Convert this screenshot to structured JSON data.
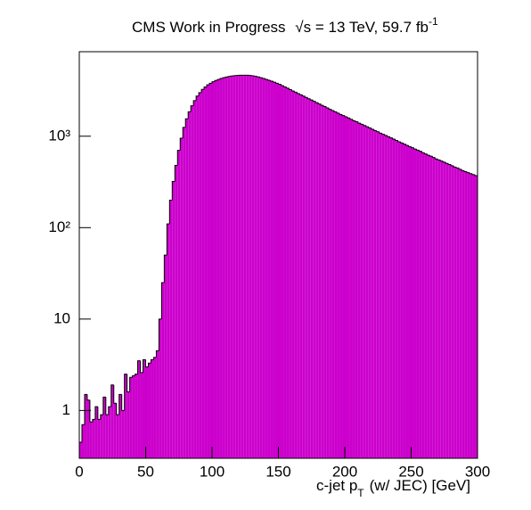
{
  "chart_data": {
    "type": "histogram",
    "title": "CMS Work in Progress",
    "title_energy": "√s = 13 TeV, 59.7 fb",
    "title_superscript": "-1",
    "xlabel": "c-jet p",
    "xlabel_subscript": "T",
    "xlabel_suffix": "(w/ JEC) [GeV]",
    "color": "#cc00cc",
    "log_y": true,
    "bins": [
      0,
      2,
      4,
      6,
      8,
      10,
      12,
      14,
      16,
      18,
      20,
      22,
      24,
      26,
      28,
      30,
      32,
      34,
      36,
      38,
      40,
      42,
      44,
      46,
      48,
      50,
      52,
      54,
      56,
      58,
      60,
      62,
      64,
      66,
      68,
      70,
      72,
      74,
      76,
      78,
      80,
      82,
      84,
      86,
      88,
      90,
      92,
      94,
      96,
      98,
      100,
      102,
      104,
      106,
      108,
      110,
      112,
      114,
      116,
      118,
      120,
      122,
      124,
      126,
      128,
      130,
      132,
      134,
      136,
      138,
      140,
      142,
      144,
      146,
      148,
      150,
      152,
      154,
      156,
      158,
      160,
      162,
      164,
      166,
      168,
      170,
      172,
      174,
      176,
      178,
      180,
      182,
      184,
      186,
      188,
      190,
      192,
      194,
      196,
      198,
      200,
      202,
      204,
      206,
      208,
      210,
      212,
      214,
      216,
      218,
      220,
      222,
      224,
      226,
      228,
      230,
      232,
      234,
      236,
      238,
      240,
      242,
      244,
      246,
      248,
      250,
      252,
      254,
      256,
      258,
      260,
      262,
      264,
      266,
      268,
      270,
      272,
      274,
      276,
      278,
      280,
      282,
      284,
      286,
      288,
      290,
      292,
      294,
      296,
      298,
      300
    ],
    "values": [
      0.45,
      0.7,
      1.5,
      1.3,
      0.75,
      0.8,
      1.1,
      0.8,
      0.9,
      1.4,
      0.9,
      1.1,
      1.9,
      1.2,
      0.9,
      1.5,
      1.0,
      2.5,
      1.6,
      2.3,
      2.4,
      2.5,
      3.5,
      2.6,
      3.6,
      3.0,
      3.3,
      3.6,
      3.8,
      4.5,
      10,
      25,
      50,
      110,
      200,
      320,
      480,
      700,
      950,
      1250,
      1550,
      1850,
      2150,
      2450,
      2750,
      3000,
      3250,
      3450,
      3650,
      3800,
      3950,
      4070,
      4180,
      4280,
      4370,
      4440,
      4500,
      4550,
      4590,
      4620,
      4640,
      4650,
      4650,
      4640,
      4620,
      4580,
      4520,
      4450,
      4370,
      4280,
      4190,
      4100,
      4000,
      3900,
      3800,
      3700,
      3580,
      3460,
      3350,
      3240,
      3130,
      3030,
      2930,
      2840,
      2750,
      2660,
      2570,
      2490,
      2410,
      2330,
      2250,
      2180,
      2110,
      2040,
      1970,
      1910,
      1850,
      1790,
      1730,
      1680,
      1630,
      1580,
      1530,
      1480,
      1440,
      1390,
      1350,
      1310,
      1270,
      1230,
      1190,
      1150,
      1120,
      1080,
      1050,
      1020,
      990,
      960,
      930,
      900,
      870,
      845,
      820,
      795,
      770,
      750,
      725,
      705,
      685,
      660,
      640,
      620,
      605,
      585,
      565,
      550,
      535,
      520,
      505,
      490,
      475,
      460,
      450,
      435,
      420,
      410,
      400,
      390,
      380,
      370
    ],
    "xlim": [
      0,
      300
    ],
    "xticks": [
      0,
      50,
      100,
      150,
      200,
      250,
      300
    ],
    "ylim": [
      0.3,
      8400
    ],
    "yticks": [
      1,
      10,
      {
        "value": 100,
        "label": "10²"
      },
      {
        "value": 1000,
        "label": "10³"
      }
    ]
  }
}
